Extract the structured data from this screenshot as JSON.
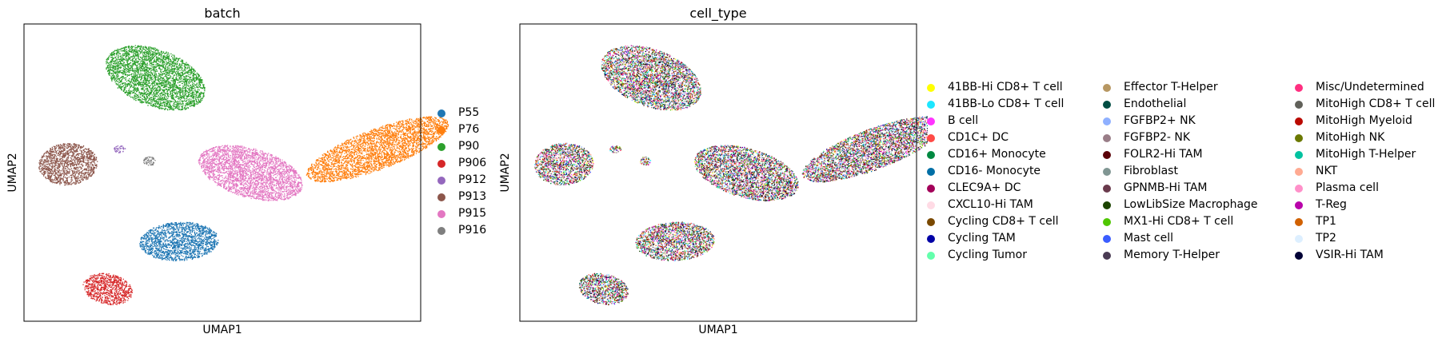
{
  "chart_data": [
    {
      "type": "scatter",
      "title": "batch",
      "xlabel": "UMAP1",
      "ylabel": "UMAP2",
      "grid": false,
      "legend_position": "right",
      "series": [
        {
          "name": "P55",
          "color": "#1f77b4",
          "clusters": [
            {
              "cx": 0.39,
              "cy": 0.27,
              "rx": 0.1,
              "ry": 0.065,
              "rot": 5
            }
          ]
        },
        {
          "name": "P76",
          "color": "#ff7f0e",
          "clusters": [
            {
              "cx": 0.89,
              "cy": 0.58,
              "rx": 0.065,
              "ry": 0.2,
              "rot": -62
            }
          ]
        },
        {
          "name": "P90",
          "color": "#2ca02c",
          "clusters": [
            {
              "cx": 0.33,
              "cy": 0.82,
              "rx": 0.14,
              "ry": 0.09,
              "rot": -35
            }
          ]
        },
        {
          "name": "P906",
          "color": "#d62728",
          "clusters": [
            {
              "cx": 0.21,
              "cy": 0.11,
              "rx": 0.065,
              "ry": 0.05,
              "rot": -25
            }
          ]
        },
        {
          "name": "P912",
          "color": "#9467bd",
          "clusters": [
            {
              "cx": 0.24,
              "cy": 0.58,
              "rx": 0.015,
              "ry": 0.012,
              "rot": 0
            }
          ]
        },
        {
          "name": "P913",
          "color": "#8c564b",
          "clusters": [
            {
              "cx": 0.11,
              "cy": 0.53,
              "rx": 0.075,
              "ry": 0.07,
              "rot": 25
            }
          ]
        },
        {
          "name": "P915",
          "color": "#e377c2",
          "clusters": [
            {
              "cx": 0.57,
              "cy": 0.5,
              "rx": 0.14,
              "ry": 0.08,
              "rot": -25
            }
          ]
        },
        {
          "name": "P916",
          "color": "#7f7f7f",
          "clusters": [
            {
              "cx": 0.315,
              "cy": 0.54,
              "rx": 0.015,
              "ry": 0.015,
              "rot": 0
            }
          ]
        }
      ]
    },
    {
      "type": "scatter",
      "title": "cell_type",
      "xlabel": "UMAP1",
      "ylabel": "UMAP2",
      "grid": false,
      "legend_position": "right",
      "series": [
        {
          "name": "41BB-Hi CD8+ T cell",
          "color": "#ffff00"
        },
        {
          "name": "41BB-Lo CD8+ T cell",
          "color": "#1ce6ff"
        },
        {
          "name": "B cell",
          "color": "#ff34ff"
        },
        {
          "name": "CD1C+ DC",
          "color": "#ff4a46"
        },
        {
          "name": "CD16+ Monocyte",
          "color": "#008941"
        },
        {
          "name": "CD16- Monocyte",
          "color": "#006fa6"
        },
        {
          "name": "CLEC9A+ DC",
          "color": "#a30059"
        },
        {
          "name": "CXCL10-Hi TAM",
          "color": "#ffdbe5"
        },
        {
          "name": "Cycling CD8+ T cell",
          "color": "#7a4900"
        },
        {
          "name": "Cycling TAM",
          "color": "#0000a6"
        },
        {
          "name": "Cycling Tumor",
          "color": "#63ffac"
        },
        {
          "name": "Effector T-Helper",
          "color": "#b79762"
        },
        {
          "name": "Endothelial",
          "color": "#004d43"
        },
        {
          "name": "FGFBP2+ NK",
          "color": "#8fb0ff"
        },
        {
          "name": "FGFBP2- NK",
          "color": "#997d87"
        },
        {
          "name": "FOLR2-Hi TAM",
          "color": "#5a0007"
        },
        {
          "name": "Fibroblast",
          "color": "#809693"
        },
        {
          "name": "GPNMB-Hi TAM",
          "color": "#6a3a4c"
        },
        {
          "name": "LowLibSize Macrophage",
          "color": "#1b4400"
        },
        {
          "name": "MX1-Hi CD8+ T cell",
          "color": "#4fc601"
        },
        {
          "name": "Mast cell",
          "color": "#3b5dff"
        },
        {
          "name": "Memory T-Helper",
          "color": "#4a3b53"
        },
        {
          "name": "Misc/Undetermined",
          "color": "#ff2f80"
        },
        {
          "name": "MitoHigh CD8+ T cell",
          "color": "#61615a"
        },
        {
          "name": "MitoHigh Myeloid",
          "color": "#ba0900"
        },
        {
          "name": "MitoHigh NK",
          "color": "#6b7900"
        },
        {
          "name": "MitoHigh T-Helper",
          "color": "#00c2a0"
        },
        {
          "name": "NKT",
          "color": "#ffaa92"
        },
        {
          "name": "Plasma cell",
          "color": "#ff90c9"
        },
        {
          "name": "T-Reg",
          "color": "#b903aa"
        },
        {
          "name": "TP1",
          "color": "#d16100"
        },
        {
          "name": "TP2",
          "color": "#ddefff"
        },
        {
          "name": "VSIR-Hi TAM",
          "color": "#000035"
        }
      ]
    }
  ]
}
